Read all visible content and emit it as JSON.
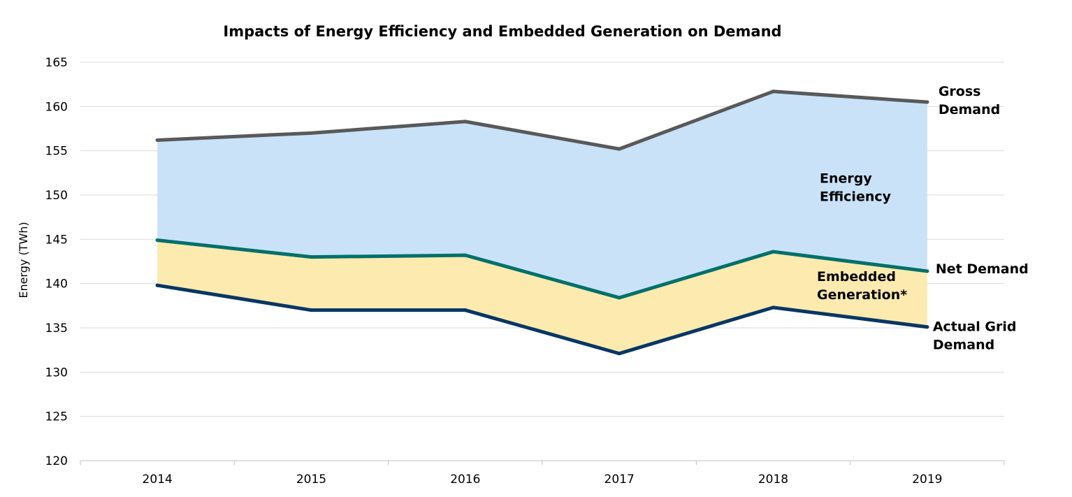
{
  "chart_data": {
    "type": "area",
    "title": "Impacts of Energy Efficiency and Embedded Generation on Demand",
    "xlabel": "",
    "ylabel": "Energy (TWh)",
    "ylim": [
      120,
      165
    ],
    "y_ticks": [
      120,
      125,
      130,
      135,
      140,
      145,
      150,
      155,
      160,
      165
    ],
    "grid": true,
    "categories": [
      "2014",
      "2015",
      "2016",
      "2017",
      "2018",
      "2019"
    ],
    "series": [
      {
        "name": "Gross Demand",
        "label_lines": [
          "Gross",
          "Demand"
        ],
        "color": "#595959",
        "values": [
          156.2,
          157.0,
          158.3,
          155.2,
          161.7,
          160.5
        ]
      },
      {
        "name": "Net Demand",
        "label_lines": [
          "Net Demand"
        ],
        "color": "#00706b",
        "values": [
          144.9,
          143.0,
          143.2,
          138.4,
          143.6,
          141.4
        ]
      },
      {
        "name": "Actual Grid Demand",
        "label_lines": [
          "Actual Grid",
          "Demand"
        ],
        "color": "#073763",
        "values": [
          139.8,
          137.0,
          137.0,
          132.1,
          137.3,
          135.1
        ]
      }
    ],
    "bands": [
      {
        "name": "Energy Efficiency",
        "label_lines": [
          "Energy",
          "Efficiency"
        ],
        "between": [
          "Gross Demand",
          "Net Demand"
        ],
        "color": "#c9e2f8"
      },
      {
        "name": "Embedded Generation*",
        "label_lines": [
          "Embedded",
          "Generation*"
        ],
        "between": [
          "Net Demand",
          "Actual Grid Demand"
        ],
        "color": "#fdeaae"
      }
    ]
  }
}
